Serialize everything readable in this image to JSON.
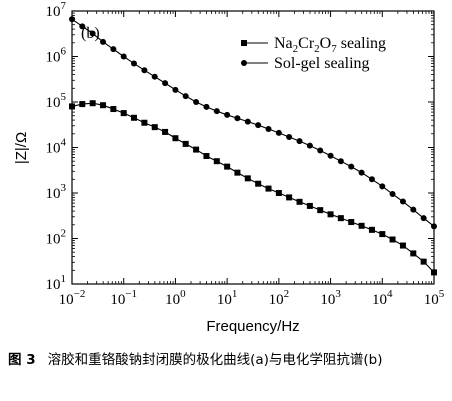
{
  "chart_data": {
    "type": "line",
    "panel_label": "(b)",
    "xlabel": "Frequency/Hz",
    "ylabel": "|Z|/Ω",
    "xscale": "log",
    "yscale": "log",
    "xlim": [
      0.01,
      100000
    ],
    "ylim": [
      10,
      10000000
    ],
    "grid": false,
    "legend_position": "top-right",
    "x_ticks": [
      {
        "value": 0.01,
        "base": "10",
        "exp": "−2"
      },
      {
        "value": 0.1,
        "base": "10",
        "exp": "−1"
      },
      {
        "value": 1,
        "base": "10",
        "exp": "0"
      },
      {
        "value": 10,
        "base": "10",
        "exp": "1"
      },
      {
        "value": 100,
        "base": "10",
        "exp": "2"
      },
      {
        "value": 1000,
        "base": "10",
        "exp": "3"
      },
      {
        "value": 10000,
        "base": "10",
        "exp": "4"
      },
      {
        "value": 100000,
        "base": "10",
        "exp": "5"
      }
    ],
    "y_ticks": [
      {
        "value": 10,
        "base": "10",
        "exp": "1"
      },
      {
        "value": 100,
        "base": "10",
        "exp": "2"
      },
      {
        "value": 1000,
        "base": "10",
        "exp": "3"
      },
      {
        "value": 10000,
        "base": "10",
        "exp": "4"
      },
      {
        "value": 100000,
        "base": "10",
        "exp": "5"
      },
      {
        "value": 1000000,
        "base": "10",
        "exp": "6"
      },
      {
        "value": 10000000,
        "base": "10",
        "exp": "7"
      }
    ],
    "series": [
      {
        "name": "Na2Cr2O7 sealing",
        "name_parts": [
          {
            "t": "Na",
            "sub": false
          },
          {
            "t": "2",
            "sub": true
          },
          {
            "t": "Cr",
            "sub": false
          },
          {
            "t": "2",
            "sub": true
          },
          {
            "t": "O",
            "sub": false
          },
          {
            "t": "7",
            "sub": true
          },
          {
            "t": " sealing",
            "sub": false
          }
        ],
        "marker": "square",
        "x": [
          0.01,
          0.0158,
          0.0251,
          0.0398,
          0.0631,
          0.1,
          0.158,
          0.251,
          0.398,
          0.631,
          1,
          1.58,
          2.51,
          3.98,
          6.31,
          10,
          15.8,
          25.1,
          39.8,
          63.1,
          100,
          158,
          251,
          398,
          631,
          1000,
          1580,
          2510,
          3980,
          6310,
          10000,
          15800,
          25100,
          39800,
          63100,
          100000
        ],
        "y": [
          80000,
          90000,
          94000,
          85000,
          70000,
          57000,
          45000,
          35000,
          28000,
          22000,
          16000,
          12000,
          9000,
          6500,
          5000,
          3800,
          2800,
          2100,
          1600,
          1250,
          1000,
          800,
          640,
          520,
          420,
          340,
          280,
          230,
          190,
          155,
          125,
          95,
          70,
          47,
          31,
          18
        ]
      },
      {
        "name": "Sol-gel sealing",
        "name_parts": [
          {
            "t": "Sol-gel sealing",
            "sub": false
          }
        ],
        "marker": "circle",
        "x": [
          0.01,
          0.0158,
          0.0251,
          0.0398,
          0.0631,
          0.1,
          0.158,
          0.251,
          0.398,
          0.631,
          1,
          1.58,
          2.51,
          3.98,
          6.31,
          10,
          15.8,
          25.1,
          39.8,
          63.1,
          100,
          158,
          251,
          398,
          631,
          1000,
          1580,
          2510,
          3980,
          6310,
          10000,
          15800,
          25100,
          39800,
          63100,
          100000
        ],
        "y": [
          6600000,
          4600000,
          3200000,
          2100000,
          1450000,
          1000000,
          700000,
          500000,
          360000,
          260000,
          185000,
          135000,
          100000,
          78000,
          63000,
          52000,
          44000,
          37000,
          31000,
          25500,
          21000,
          17000,
          13800,
          11000,
          8600,
          6600,
          5000,
          3800,
          2800,
          2000,
          1400,
          950,
          650,
          430,
          280,
          185
        ]
      }
    ]
  },
  "caption": {
    "figure_number": "图 3",
    "text": "溶胶和重铬酸钠封闭膜的极化曲线(a)与电化学阻抗谱(b)"
  }
}
